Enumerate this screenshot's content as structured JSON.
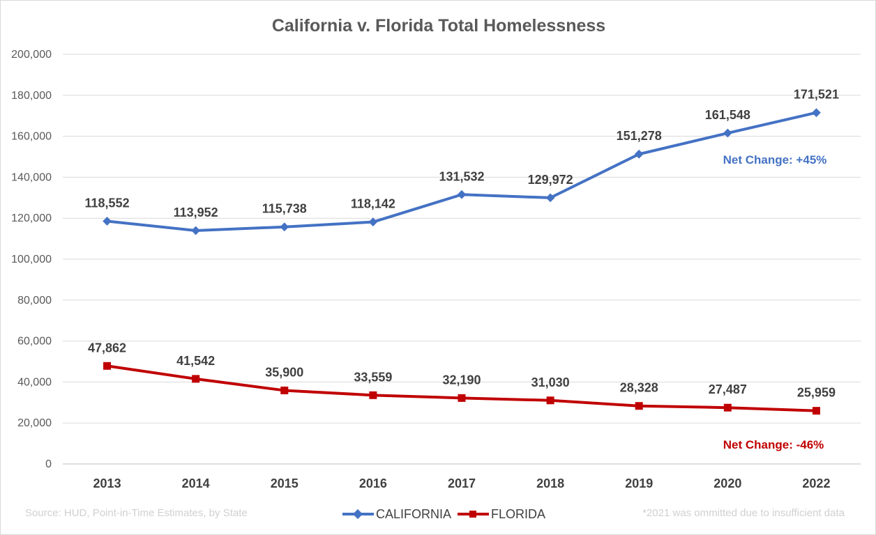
{
  "chart_data": {
    "type": "line",
    "title": "California v. Florida Total Homelessness",
    "categories": [
      "2013",
      "2014",
      "2015",
      "2016",
      "2017",
      "2018",
      "2019",
      "2020",
      "2022"
    ],
    "ylim": [
      0,
      200000
    ],
    "yticks": [
      0,
      20000,
      40000,
      60000,
      80000,
      100000,
      120000,
      140000,
      160000,
      180000,
      200000
    ],
    "ytick_labels": [
      "0",
      "20,000",
      "40,000",
      "60,000",
      "80,000",
      "100,000",
      "120,000",
      "140,000",
      "160,000",
      "180,000",
      "200,000"
    ],
    "grid": true,
    "legend_placement": "bottom-center",
    "series": [
      {
        "name": "CALIFORNIA",
        "color": "#4472C4",
        "marker": "diamond",
        "values": [
          118552,
          113952,
          115738,
          118142,
          131532,
          129972,
          151278,
          161548,
          171521
        ],
        "labels": [
          "118,552",
          "113,952",
          "115,738",
          "118,142",
          "131,532",
          "129,972",
          "151,278",
          "161,548",
          "171,521"
        ]
      },
      {
        "name": "FLORIDA",
        "color": "#C00000",
        "marker": "square",
        "values": [
          47862,
          41542,
          35900,
          33559,
          32190,
          31030,
          28328,
          27487,
          25959
        ],
        "labels": [
          "47,862",
          "41,542",
          "35,900",
          "33,559",
          "32,190",
          "31,030",
          "28,328",
          "27,487",
          "25,959"
        ]
      }
    ],
    "annotations": {
      "california_net": "Net Change: +45%",
      "florida_net": "Net Change: -46%",
      "source": "Source: HUD, Point-in-Time Estimates, by State",
      "footnote": "*2021 was ommitted due to insufficient  data"
    }
  }
}
